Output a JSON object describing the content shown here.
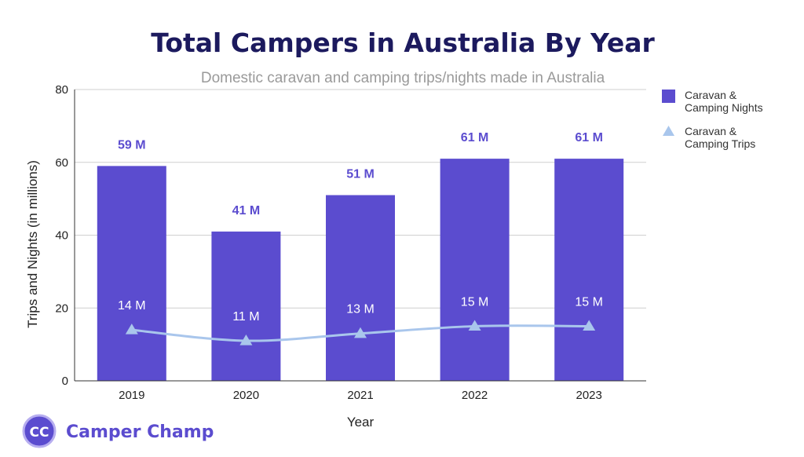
{
  "chart_data": {
    "type": "bar",
    "title": "Total Campers in Australia By Year",
    "subtitle": "Domestic caravan and camping trips/nights made in Australia",
    "xlabel": "Year",
    "ylabel": "Trips and Nights (in millions)",
    "ylim": [
      0,
      80
    ],
    "yticks": [
      0,
      20,
      40,
      60,
      80
    ],
    "grid": true,
    "legend_position": "right",
    "categories": [
      "2019",
      "2020",
      "2021",
      "2022",
      "2023"
    ],
    "series": [
      {
        "name": "Caravan & Camping Nights",
        "type": "bar",
        "color": "#5b4ccf",
        "values": [
          59,
          41,
          51,
          61,
          61
        ],
        "labels": [
          "59 M",
          "41 M",
          "51 M",
          "61 M",
          "61 M"
        ]
      },
      {
        "name": "Caravan & Camping Trips",
        "type": "line",
        "color": "#a9c6ec",
        "marker": "triangle",
        "values": [
          14,
          11,
          13,
          15,
          15
        ],
        "labels": [
          "14 M",
          "11 M",
          "13 M",
          "15 M",
          "15 M"
        ]
      }
    ],
    "legend": [
      {
        "line1": "Caravan &",
        "line2": "Camping Nights"
      },
      {
        "line1": "Caravan &",
        "line2": "Camping Trips"
      }
    ]
  },
  "logo": {
    "mark": "CC",
    "text": "Camper Champ"
  }
}
